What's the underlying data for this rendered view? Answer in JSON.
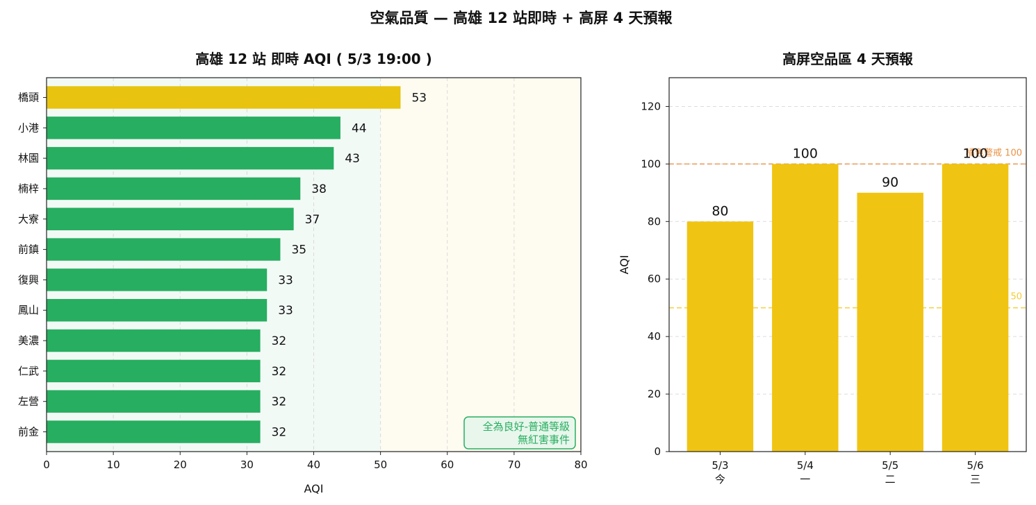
{
  "figure": {
    "title": "空氣品質 — 高雄 12 站即時 + 高屏 4 天預報"
  },
  "chart_data": [
    {
      "type": "bar",
      "orientation": "horizontal",
      "title": "高雄 12 站 即時 AQI ( 5/3 19:00 )",
      "xlabel": "AQI",
      "ylabel": "",
      "xlim": [
        0,
        80
      ],
      "xticks": [
        0,
        10,
        20,
        30,
        40,
        50,
        60,
        70,
        80
      ],
      "grid": true,
      "categories": [
        "橋頭",
        "小港",
        "林園",
        "楠梓",
        "大寮",
        "前鎮",
        "復興",
        "鳳山",
        "美濃",
        "仁武",
        "左營",
        "前金"
      ],
      "values": [
        53,
        44,
        43,
        38,
        37,
        35,
        33,
        33,
        32,
        32,
        32,
        32
      ],
      "bar_colors": [
        "#e8c30f",
        "#27ae60",
        "#27ae60",
        "#27ae60",
        "#27ae60",
        "#27ae60",
        "#27ae60",
        "#27ae60",
        "#27ae60",
        "#27ae60",
        "#27ae60",
        "#27ae60"
      ],
      "background_bands": [
        {
          "from": 0,
          "to": 50,
          "color": "#27ae60"
        },
        {
          "from": 50,
          "to": 80,
          "color": "#f1c40f"
        }
      ],
      "annotation": {
        "lines": [
          "全為良好-普通等級",
          "無紅害事件"
        ],
        "placement": "bottom-right",
        "text_color": "#27ae60",
        "border_color": "#27ae60",
        "fill_color": "#e8f6ec"
      }
    },
    {
      "type": "bar",
      "orientation": "vertical",
      "title": "高屏空品區 4 天預報",
      "xlabel": "",
      "ylabel": "AQI",
      "ylim": [
        0,
        130
      ],
      "yticks": [
        0,
        20,
        40,
        60,
        80,
        100,
        120
      ],
      "grid": true,
      "categories": [
        {
          "date": "5/3",
          "day": "今"
        },
        {
          "date": "5/4",
          "day": "一"
        },
        {
          "date": "5/5",
          "day": "二"
        },
        {
          "date": "5/6",
          "day": "三"
        }
      ],
      "values": [
        80,
        100,
        90,
        100
      ],
      "bar_color": "#f0c413",
      "reference_lines": [
        {
          "value": 100,
          "label": "橘色警戒 100",
          "color": "#e67e22"
        },
        {
          "value": 50,
          "label": "普通 50",
          "color": "#f1c40f"
        }
      ]
    }
  ]
}
